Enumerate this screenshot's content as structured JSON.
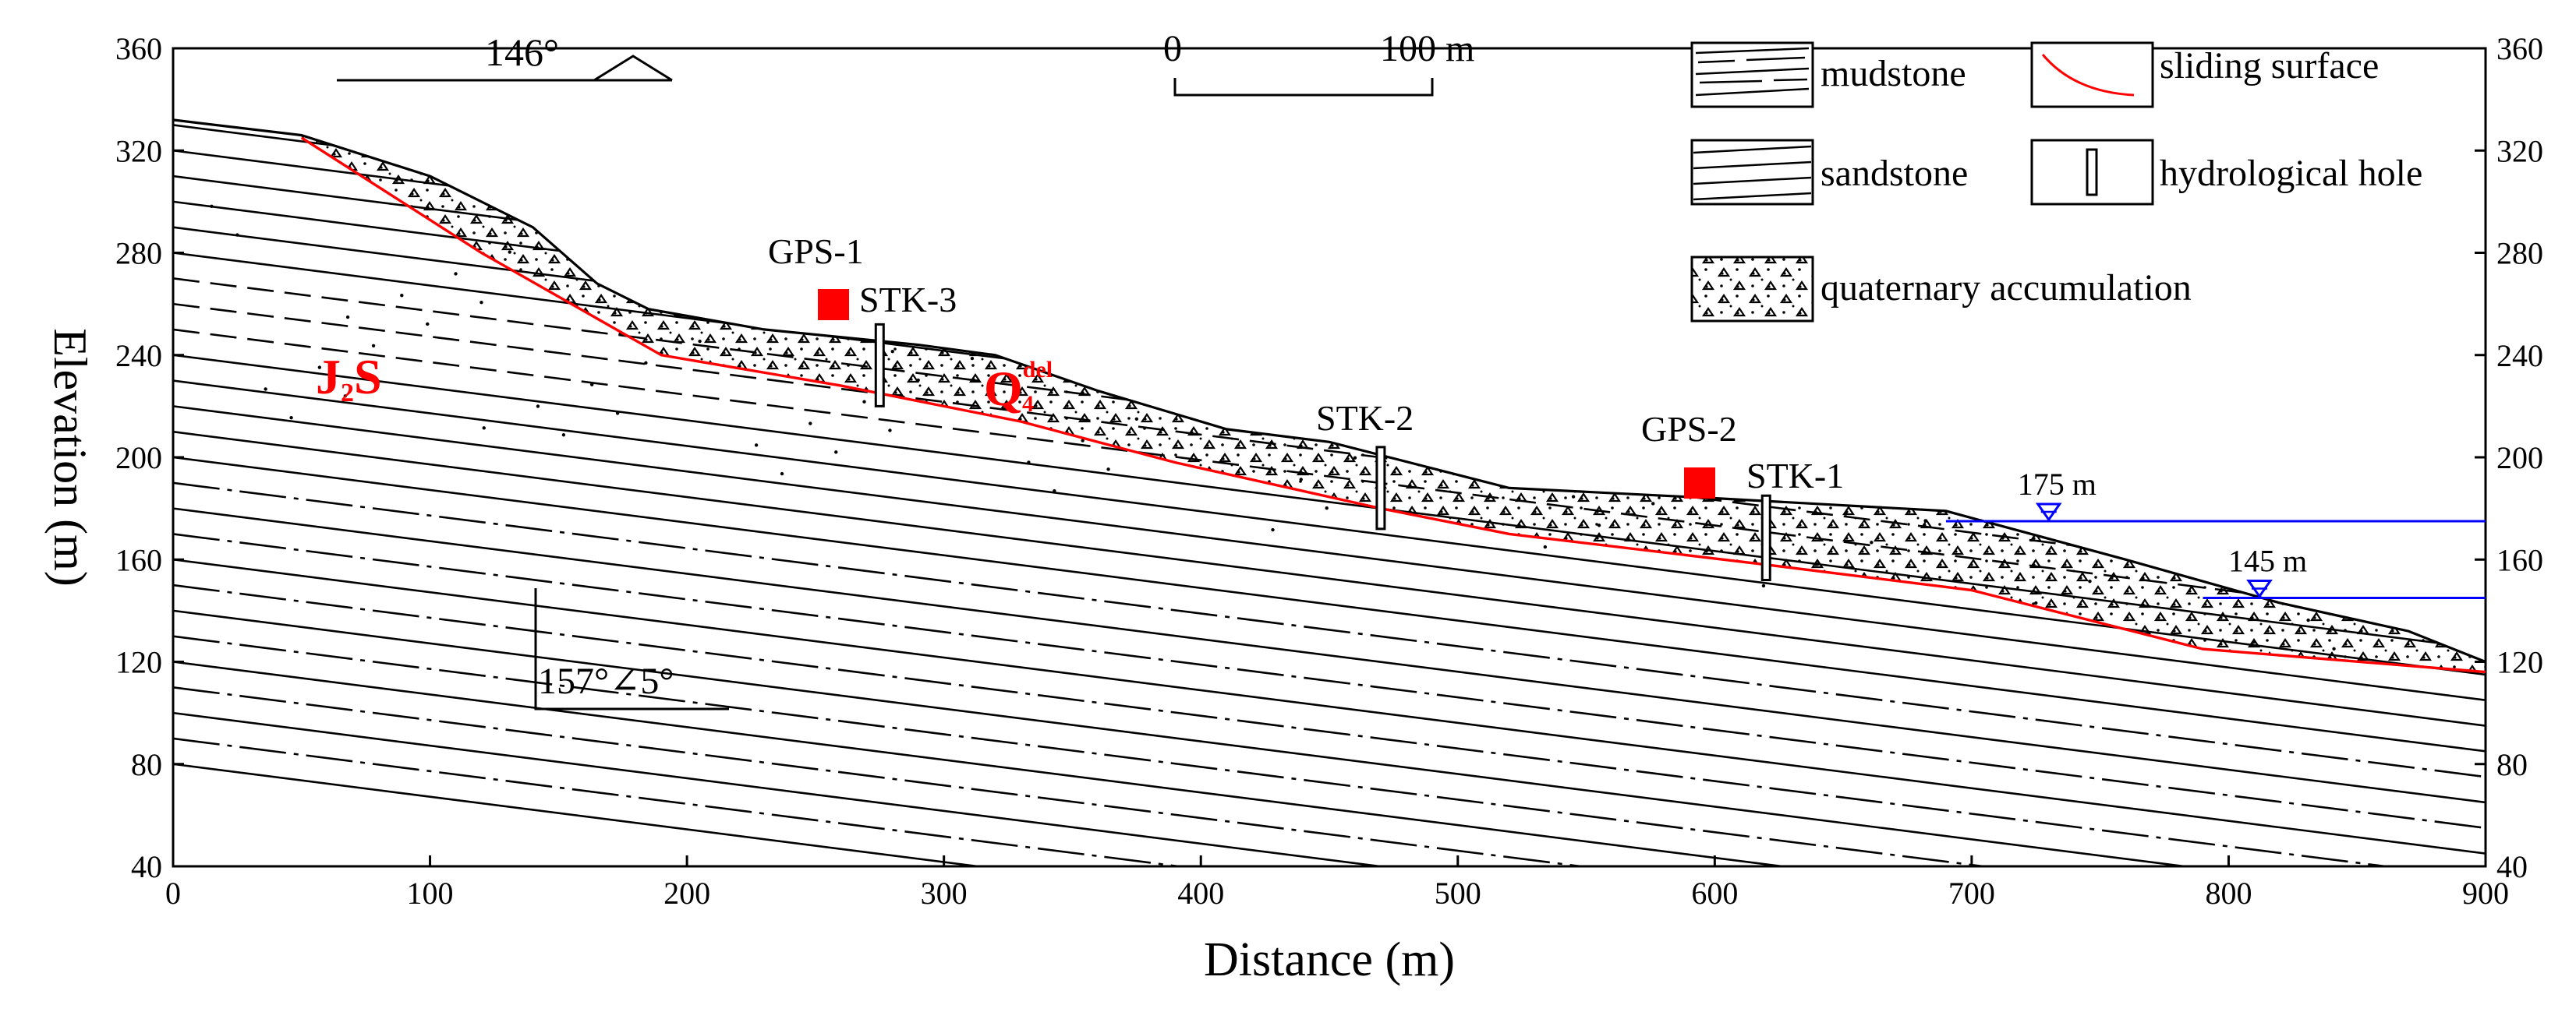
{
  "chart_data": {
    "type": "diagram",
    "xlabel": "Distance (m)",
    "ylabel": "Elevation (m)",
    "xlim": [
      0,
      900
    ],
    "ylim": [
      40,
      360
    ],
    "x_ticks": [
      "0",
      "100",
      "200",
      "300",
      "400",
      "500",
      "600",
      "700",
      "800",
      "900"
    ],
    "y_ticks": [
      "360",
      "320",
      "280",
      "240",
      "200",
      "160",
      "120",
      "80",
      "40"
    ],
    "strike": "146°",
    "dip": "157°∠5°",
    "scale": {
      "start": "0",
      "end": "100 m"
    },
    "legend": {
      "mudstone": "mudstone",
      "sandstone": "sandstone",
      "sliding_surface": "sliding surface",
      "hydrological_hole": "hydrological hole",
      "quaternary": "quaternary accumulation"
    },
    "units": {
      "bedrock": "J",
      "bedrock_sub": "2",
      "bedrock_suffix": "S",
      "deposit": "Q",
      "deposit_sup": "del",
      "deposit_sub": "4"
    },
    "monitoring": {
      "gps1": "GPS-1",
      "gps2": "GPS-2",
      "stk1": "STK-1",
      "stk2": "STK-2",
      "stk3": "STK-3"
    },
    "water_levels": [
      {
        "label": "175 m",
        "elevation": 175,
        "x_start": 690,
        "marker_x": 730
      },
      {
        "label": "145 m",
        "elevation": 145,
        "x_start": 790,
        "marker_x": 812
      }
    ],
    "ground_profile": [
      [
        0,
        332
      ],
      [
        50,
        326
      ],
      [
        100,
        310
      ],
      [
        140,
        290
      ],
      [
        165,
        268
      ],
      [
        185,
        258
      ],
      [
        230,
        250
      ],
      [
        290,
        244
      ],
      [
        320,
        240
      ],
      [
        360,
        226
      ],
      [
        410,
        211
      ],
      [
        450,
        206
      ],
      [
        520,
        188
      ],
      [
        600,
        184
      ],
      [
        690,
        179
      ],
      [
        760,
        160
      ],
      [
        820,
        143
      ],
      [
        870,
        132
      ],
      [
        900,
        120
      ]
    ],
    "sliding_surface": [
      [
        50,
        325
      ],
      [
        120,
        280
      ],
      [
        190,
        240
      ],
      [
        260,
        228
      ],
      [
        330,
        214
      ],
      [
        390,
        198
      ],
      [
        470,
        180
      ],
      [
        520,
        170
      ],
      [
        620,
        158
      ],
      [
        700,
        148
      ],
      [
        790,
        125
      ],
      [
        900,
        116
      ]
    ]
  },
  "colors": {
    "red": "#ff0000",
    "water": "#0000ff",
    "ink": "#000000"
  }
}
